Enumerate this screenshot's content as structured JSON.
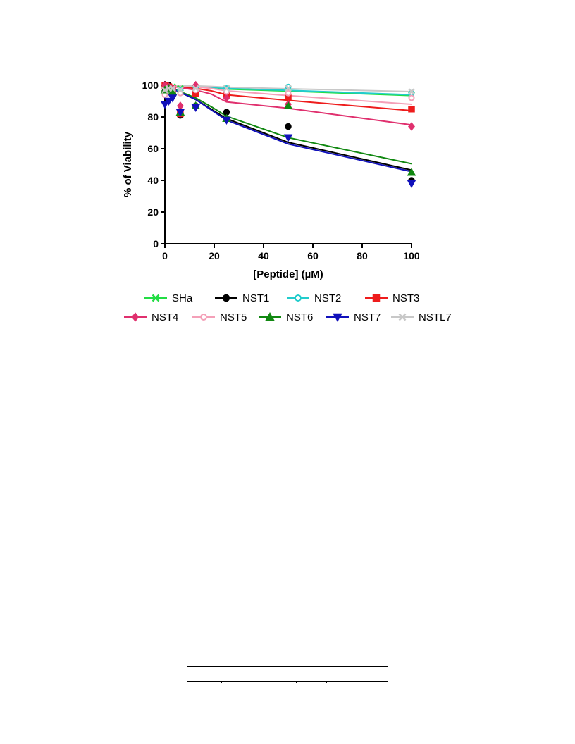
{
  "chart_data": {
    "type": "line",
    "title": "",
    "xlabel": "[Peptide] (µM)",
    "ylabel": "% of Viability",
    "xlim": [
      0,
      100
    ],
    "ylim": [
      0,
      100
    ],
    "xticks": [
      0,
      20,
      40,
      60,
      80,
      100
    ],
    "yticks": [
      0,
      20,
      40,
      60,
      80,
      100
    ],
    "x": [
      0,
      1.5625,
      3.125,
      6.25,
      12.5,
      25,
      50,
      100
    ],
    "legend_position": "bottom",
    "series": [
      {
        "name": "SHa",
        "color": "#22dd44",
        "marker": "x",
        "values": [
          98,
          99,
          99,
          98,
          98,
          98,
          98,
          94
        ],
        "fit": [
          100,
          99.7,
          99.4,
          98.8,
          97.6,
          96.3,
          93.5
        ]
      },
      {
        "name": "NST1",
        "color": "#000000",
        "marker": "circle",
        "values": [
          96,
          100,
          95,
          81,
          87,
          83,
          74,
          40
        ],
        "fit": [
          100,
          95.5,
          91,
          85,
          79,
          64,
          46.5
        ]
      },
      {
        "name": "NST2",
        "color": "#22cccc",
        "marker": "circle-open",
        "values": [
          99,
          99,
          98,
          97,
          99,
          98,
          99,
          95
        ],
        "fit": [
          100,
          99.7,
          99.4,
          98.8,
          98,
          96.8,
          94
        ]
      },
      {
        "name": "NST3",
        "color": "#ee1c1c",
        "marker": "square",
        "values": [
          100,
          99,
          98,
          82,
          95,
          94,
          92,
          85
        ],
        "fit": [
          100,
          99,
          98,
          96.5,
          94,
          90.5,
          84
        ]
      },
      {
        "name": "NST4",
        "color": "#e0306e",
        "marker": "diamond",
        "values": [
          100,
          99,
          98,
          87,
          100,
          92,
          88,
          74
        ],
        "fit": [
          100,
          98.5,
          97,
          94.5,
          89.5,
          85.5,
          75
        ]
      },
      {
        "name": "NST5",
        "color": "#f4a0b8",
        "marker": "circle-open",
        "values": [
          94,
          98,
          97,
          95,
          97,
          96,
          95,
          92
        ],
        "fit": [
          100,
          99.5,
          99,
          98,
          96.5,
          93.5,
          88
        ]
      },
      {
        "name": "NST6",
        "color": "#118811",
        "marker": "triangle-up",
        "values": [
          97,
          98,
          96,
          83,
          87,
          79,
          87,
          45
        ],
        "fit": [
          100,
          96,
          92,
          86.5,
          80.5,
          67,
          50.5
        ]
      },
      {
        "name": "NST7",
        "color": "#1111bb",
        "marker": "triangle-down",
        "values": [
          88,
          90,
          92,
          83,
          86,
          78,
          67,
          38
        ],
        "fit": [
          100,
          95.5,
          91,
          84.5,
          78,
          63,
          45.5
        ]
      },
      {
        "name": "NSTL7",
        "color": "#c8c8c8",
        "marker": "x",
        "values": [
          97,
          98,
          98,
          97,
          98,
          98,
          98,
          96
        ],
        "fit": [
          100,
          99.8,
          99.6,
          99.3,
          98.8,
          97.8,
          96
        ]
      }
    ],
    "fit_x": [
      0,
      6.25,
      12.5,
      18.75,
      25,
      50,
      100
    ]
  }
}
